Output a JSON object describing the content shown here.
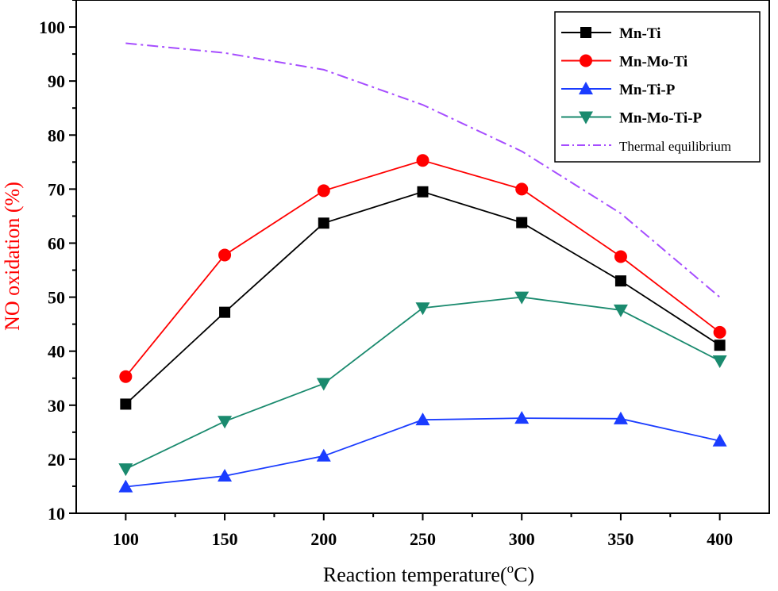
{
  "chart_data": {
    "type": "line",
    "title": "",
    "xlabel": "Reaction temperature",
    "xlabel_unit_prefix": "(",
    "xlabel_unit_sup": "o",
    "xlabel_unit_suffix": "C)",
    "ylabel": "NO oxidation (%)",
    "x": [
      100,
      150,
      200,
      250,
      300,
      350,
      400
    ],
    "xlim": [
      75,
      425
    ],
    "ylim": [
      10,
      105
    ],
    "xticks": [
      "100",
      "150",
      "200",
      "250",
      "300",
      "350",
      "400"
    ],
    "yticks": [
      "10",
      "20",
      "30",
      "40",
      "50",
      "60",
      "70",
      "80",
      "90",
      "100"
    ],
    "legend_position": "top-right",
    "series": [
      {
        "name": "Mn-Ti",
        "marker": "square",
        "color": "#000000",
        "values": [
          30.2,
          47.2,
          63.7,
          69.5,
          63.8,
          53.0,
          41.1
        ]
      },
      {
        "name": "Mn-Mo-Ti",
        "marker": "circle",
        "color": "#ff0000",
        "values": [
          35.3,
          57.8,
          69.7,
          75.3,
          70.0,
          57.5,
          43.5
        ]
      },
      {
        "name": "Mn-Ti-P",
        "marker": "triangle-up",
        "color": "#1a3cff",
        "values": [
          14.9,
          16.9,
          20.6,
          27.3,
          27.6,
          27.5,
          23.4
        ]
      },
      {
        "name": "Mn-Mo-Ti-P",
        "marker": "triangle-down",
        "color": "#1a8a6e",
        "values": [
          18.2,
          27.0,
          34.0,
          48.0,
          50.0,
          47.6,
          38.2
        ]
      },
      {
        "name": "Thermal equilibrium",
        "marker": "none",
        "line_style": "dash-dot",
        "color": "#a64dff",
        "values": [
          97.0,
          95.2,
          92.1,
          85.6,
          77.0,
          65.5,
          50.0
        ]
      }
    ],
    "colors": {
      "axis": "#000000",
      "ylabel": "#ff0000"
    }
  }
}
